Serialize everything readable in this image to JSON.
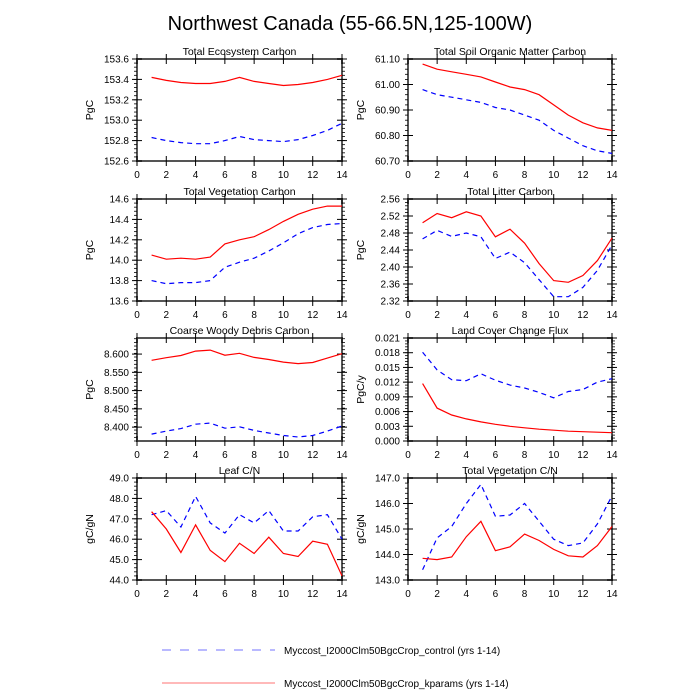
{
  "figure": {
    "title": "Northwest Canada (55-66.5N,125-100W)"
  },
  "legend": {
    "placement": "bottom-center",
    "entries": [
      {
        "label": "Myccost_I2000Clm50BgcCrop_control (yrs 1-14)",
        "color": "#0000ff",
        "style": "dashed"
      },
      {
        "label": "Myccost_I2000Clm50BgcCrop_kparams (yrs 1-14)",
        "color": "#ff0000",
        "style": "solid"
      }
    ]
  },
  "chart_data": [
    {
      "type": "line",
      "title": "Total Ecosystem Carbon",
      "xlabel": "",
      "ylabel": "PgC",
      "xlim": [
        0,
        14
      ],
      "ylim": [
        152.6,
        153.6
      ],
      "xticks": [
        0,
        2,
        4,
        6,
        8,
        10,
        12,
        14
      ],
      "yticks": [
        152.6,
        152.8,
        153.0,
        153.2,
        153.4,
        153.6
      ],
      "ytick_labels": [
        "152.6",
        "152.8",
        "153.0",
        "153.2",
        "153.4",
        "153.6"
      ],
      "x": [
        1,
        2,
        3,
        4,
        5,
        6,
        7,
        8,
        9,
        10,
        11,
        12,
        13,
        14
      ],
      "series": [
        {
          "name": "control",
          "values": [
            152.83,
            152.8,
            152.78,
            152.77,
            152.77,
            152.8,
            152.84,
            152.81,
            152.8,
            152.79,
            152.81,
            152.85,
            152.9,
            152.97
          ]
        },
        {
          "name": "kparams",
          "values": [
            153.42,
            153.39,
            153.37,
            153.36,
            153.36,
            153.38,
            153.42,
            153.38,
            153.36,
            153.34,
            153.35,
            153.37,
            153.4,
            153.44
          ]
        }
      ]
    },
    {
      "type": "line",
      "title": "Total Soil Organic Matter Carbon",
      "xlabel": "",
      "ylabel": "PgC",
      "xlim": [
        0,
        14
      ],
      "ylim": [
        60.7,
        61.1
      ],
      "xticks": [
        0,
        2,
        4,
        6,
        8,
        10,
        12,
        14
      ],
      "yticks": [
        60.7,
        60.8,
        60.9,
        61.0,
        61.1
      ],
      "ytick_labels": [
        "60.70",
        "60.80",
        "60.90",
        "61.00",
        "61.10"
      ],
      "x": [
        1,
        2,
        3,
        4,
        5,
        6,
        7,
        8,
        9,
        10,
        11,
        12,
        13,
        14
      ],
      "series": [
        {
          "name": "control",
          "values": [
            60.98,
            60.96,
            60.95,
            60.94,
            60.93,
            60.91,
            60.9,
            60.88,
            60.86,
            60.82,
            60.79,
            60.76,
            60.74,
            60.73
          ]
        },
        {
          "name": "kparams",
          "values": [
            61.08,
            61.06,
            61.05,
            61.04,
            61.03,
            61.01,
            60.99,
            60.98,
            60.96,
            60.92,
            60.88,
            60.85,
            60.83,
            60.82
          ]
        }
      ]
    },
    {
      "type": "line",
      "title": "Total Vegetation Carbon",
      "xlabel": "",
      "ylabel": "PgC",
      "xlim": [
        0,
        14
      ],
      "ylim": [
        13.6,
        14.6
      ],
      "xticks": [
        0,
        2,
        4,
        6,
        8,
        10,
        12,
        14
      ],
      "yticks": [
        13.6,
        13.8,
        14.0,
        14.2,
        14.4,
        14.6
      ],
      "ytick_labels": [
        "13.6",
        "13.8",
        "14.0",
        "14.2",
        "14.4",
        "14.6"
      ],
      "x": [
        1,
        2,
        3,
        4,
        5,
        6,
        7,
        8,
        9,
        10,
        11,
        12,
        13,
        14
      ],
      "series": [
        {
          "name": "control",
          "values": [
            13.8,
            13.77,
            13.78,
            13.78,
            13.8,
            13.93,
            13.98,
            14.02,
            14.09,
            14.17,
            14.26,
            14.32,
            14.35,
            14.36
          ]
        },
        {
          "name": "kparams",
          "values": [
            14.05,
            14.01,
            14.02,
            14.01,
            14.03,
            14.16,
            14.2,
            14.23,
            14.3,
            14.38,
            14.45,
            14.5,
            14.53,
            14.53
          ]
        }
      ]
    },
    {
      "type": "line",
      "title": "Total Litter Carbon",
      "xlabel": "",
      "ylabel": "PgC",
      "xlim": [
        0,
        14
      ],
      "ylim": [
        2.32,
        2.56
      ],
      "xticks": [
        0,
        2,
        4,
        6,
        8,
        10,
        12,
        14
      ],
      "yticks": [
        2.32,
        2.36,
        2.4,
        2.44,
        2.48,
        2.52,
        2.56
      ],
      "ytick_labels": [
        "2.32",
        "2.36",
        "2.40",
        "2.44",
        "2.48",
        "2.52",
        "2.56"
      ],
      "x": [
        1,
        2,
        3,
        4,
        5,
        6,
        7,
        8,
        9,
        10,
        11,
        12,
        13,
        14
      ],
      "series": [
        {
          "name": "control",
          "values": [
            2.466,
            2.486,
            2.472,
            2.48,
            2.471,
            2.42,
            2.435,
            2.41,
            2.37,
            2.33,
            2.33,
            2.352,
            2.392,
            2.452
          ]
        },
        {
          "name": "kparams",
          "values": [
            2.504,
            2.526,
            2.516,
            2.53,
            2.52,
            2.471,
            2.489,
            2.456,
            2.408,
            2.368,
            2.364,
            2.38,
            2.415,
            2.468
          ]
        }
      ]
    },
    {
      "type": "line",
      "title": "Coarse Woody Debris Carbon",
      "xlabel": "",
      "ylabel": "PgC",
      "xlim": [
        0,
        14
      ],
      "ylim": [
        8.362,
        8.644
      ],
      "xticks": [
        0,
        2,
        4,
        6,
        8,
        10,
        12,
        14
      ],
      "yticks": [
        8.4,
        8.45,
        8.5,
        8.55,
        8.6
      ],
      "ytick_labels": [
        "8.400",
        "8.450",
        "8.500",
        "8.550",
        "8.600"
      ],
      "x": [
        1,
        2,
        3,
        4,
        5,
        6,
        7,
        8,
        9,
        10,
        11,
        12,
        13,
        14
      ],
      "series": [
        {
          "name": "control",
          "values": [
            8.381,
            8.389,
            8.396,
            8.408,
            8.411,
            8.397,
            8.401,
            8.391,
            8.384,
            8.377,
            8.373,
            8.377,
            8.389,
            8.403
          ]
        },
        {
          "name": "kparams",
          "values": [
            8.583,
            8.59,
            8.596,
            8.608,
            8.611,
            8.597,
            8.602,
            8.591,
            8.585,
            8.578,
            8.574,
            8.577,
            8.589,
            8.601
          ]
        }
      ]
    },
    {
      "type": "line",
      "title": "Land Cover Change Flux",
      "xlabel": "",
      "ylabel": "PgC/y",
      "xlim": [
        0,
        14
      ],
      "ylim": [
        0.0,
        0.021
      ],
      "xticks": [
        0,
        2,
        4,
        6,
        8,
        10,
        12,
        14
      ],
      "yticks": [
        0.0,
        0.003,
        0.006,
        0.009,
        0.012,
        0.015,
        0.018,
        0.021
      ],
      "ytick_labels": [
        "0.000",
        "0.003",
        "0.006",
        "0.009",
        "0.012",
        "0.015",
        "0.018",
        "0.021"
      ],
      "x": [
        1,
        2,
        3,
        4,
        5,
        6,
        7,
        8,
        9,
        10,
        11,
        12,
        13,
        14
      ],
      "series": [
        {
          "name": "control",
          "values": [
            0.0181,
            0.0145,
            0.0125,
            0.0123,
            0.0137,
            0.0124,
            0.0114,
            0.0108,
            0.0099,
            0.0088,
            0.0101,
            0.0105,
            0.012,
            0.0127
          ]
        },
        {
          "name": "kparams",
          "values": [
            0.0117,
            0.0067,
            0.0053,
            0.0045,
            0.0039,
            0.0034,
            0.003,
            0.0027,
            0.0024,
            0.0022,
            0.002,
            0.0019,
            0.0018,
            0.0017
          ]
        }
      ]
    },
    {
      "type": "line",
      "title": "Leaf C/N",
      "xlabel": "",
      "ylabel": "gC/gN",
      "xlim": [
        0,
        14
      ],
      "ylim": [
        44.0,
        49.0
      ],
      "xticks": [
        0,
        2,
        4,
        6,
        8,
        10,
        12,
        14
      ],
      "yticks": [
        44.0,
        45.0,
        46.0,
        47.0,
        48.0,
        49.0
      ],
      "ytick_labels": [
        "44.0",
        "45.0",
        "46.0",
        "47.0",
        "48.0",
        "49.0"
      ],
      "x": [
        1,
        2,
        3,
        4,
        5,
        6,
        7,
        8,
        9,
        10,
        11,
        12,
        13,
        14
      ],
      "series": [
        {
          "name": "control",
          "values": [
            47.2,
            47.4,
            46.6,
            48.1,
            46.8,
            46.3,
            47.2,
            46.8,
            47.4,
            46.4,
            46.4,
            47.1,
            47.2,
            46.0
          ]
        },
        {
          "name": "kparams",
          "values": [
            47.35,
            46.5,
            45.35,
            46.7,
            45.45,
            44.9,
            45.8,
            45.3,
            46.1,
            45.3,
            45.15,
            45.9,
            45.75,
            44.2
          ]
        }
      ]
    },
    {
      "type": "line",
      "title": "Total Vegetation C/N",
      "xlabel": "",
      "ylabel": "gC/gN",
      "xlim": [
        0,
        14
      ],
      "ylim": [
        143.0,
        147.0
      ],
      "xticks": [
        0,
        2,
        4,
        6,
        8,
        10,
        12,
        14
      ],
      "yticks": [
        143.0,
        144.0,
        145.0,
        146.0,
        147.0
      ],
      "ytick_labels": [
        "143.0",
        "144.0",
        "145.0",
        "146.0",
        "147.0"
      ],
      "x": [
        1,
        2,
        3,
        4,
        5,
        6,
        7,
        8,
        9,
        10,
        11,
        12,
        13,
        14
      ],
      "series": [
        {
          "name": "control",
          "values": [
            143.4,
            144.65,
            145.1,
            146.0,
            146.75,
            145.5,
            145.55,
            146.0,
            145.3,
            144.6,
            144.35,
            144.45,
            145.2,
            146.3
          ]
        },
        {
          "name": "kparams",
          "values": [
            143.85,
            143.8,
            143.9,
            144.7,
            145.3,
            144.15,
            144.3,
            144.8,
            144.55,
            144.2,
            143.95,
            143.9,
            144.35,
            145.1
          ]
        }
      ]
    }
  ]
}
